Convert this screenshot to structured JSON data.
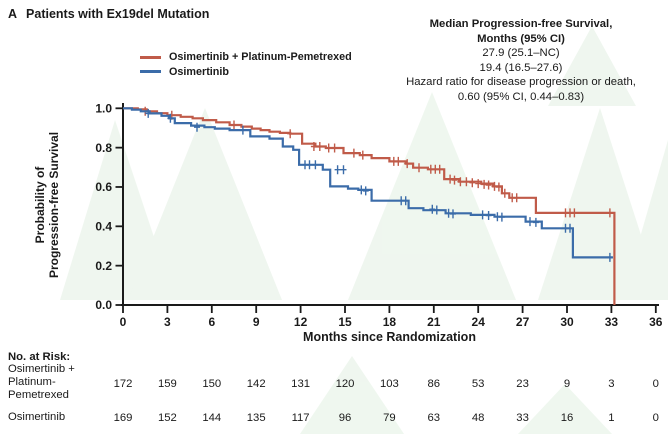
{
  "title": {
    "panel": "A",
    "text": "Patients with Ex19del Mutation"
  },
  "legend": [
    {
      "label": "Osimertinib + Platinum-Pemetrexed",
      "color": "#c05b49"
    },
    {
      "label": "Osimertinib",
      "color": "#3b6ca9"
    }
  ],
  "stats": {
    "heading_line1": "Median Progression-free Survival,",
    "heading_line2": "Months (95% CI)",
    "median_combo": "27.9 (25.1–NC)",
    "median_mono": "19.4 (16.5–27.6)",
    "hazard_line1": "Hazard ratio for disease progression or death,",
    "hazard_line2": "0.60 (95% CI, 0.44–0.83)"
  },
  "chart_data": {
    "type": "line",
    "subtype": "kaplan-meier-step",
    "title": "A Patients with Ex19del Mutation",
    "xlabel": "Months since Randomization",
    "ylabel_lines": [
      "Probability of",
      "Progression-free Survival"
    ],
    "xlim": [
      0,
      36
    ],
    "ylim": [
      0.0,
      1.0
    ],
    "xticks": [
      0,
      3,
      6,
      9,
      12,
      15,
      18,
      21,
      24,
      27,
      30,
      33,
      36
    ],
    "ytick_labels": [
      "0.0",
      "0.2",
      "0.4",
      "0.6",
      "0.8",
      "1.0"
    ],
    "yticks": [
      0.0,
      0.2,
      0.4,
      0.6,
      0.8,
      1.0
    ],
    "grid": false,
    "legend_position": "top-left-inside",
    "series": [
      {
        "name": "Osimertinib + Platinum-Pemetrexed",
        "color": "#c05b49",
        "median_months": "27.9 (25.1–NC)",
        "steps": [
          [
            0,
            1.0
          ],
          [
            1.0,
            0.995
          ],
          [
            1.6,
            0.985
          ],
          [
            2.3,
            0.975
          ],
          [
            3.0,
            0.965
          ],
          [
            3.9,
            0.957
          ],
          [
            4.7,
            0.949
          ],
          [
            5.4,
            0.94
          ],
          [
            6.3,
            0.929
          ],
          [
            7.2,
            0.915
          ],
          [
            8.0,
            0.907
          ],
          [
            8.7,
            0.897
          ],
          [
            9.3,
            0.889
          ],
          [
            9.9,
            0.881
          ],
          [
            10.6,
            0.875
          ],
          [
            11.3,
            0.871
          ],
          [
            12.1,
            0.82
          ],
          [
            13.0,
            0.806
          ],
          [
            13.7,
            0.798
          ],
          [
            14.9,
            0.772
          ],
          [
            16.0,
            0.762
          ],
          [
            16.8,
            0.747
          ],
          [
            18.0,
            0.73
          ],
          [
            19.1,
            0.719
          ],
          [
            19.6,
            0.698
          ],
          [
            20.6,
            0.69
          ],
          [
            21.7,
            0.64
          ],
          [
            22.7,
            0.627
          ],
          [
            24.2,
            0.617
          ],
          [
            25.0,
            0.603
          ],
          [
            25.6,
            0.568
          ],
          [
            26.1,
            0.545
          ],
          [
            27.9,
            0.468
          ],
          [
            33.2,
            0.468
          ]
        ],
        "drop_to_zero_at": 33.2,
        "censors": [
          [
            1.5,
            0.985
          ],
          [
            3.3,
            0.965
          ],
          [
            7.5,
            0.915
          ],
          [
            11.3,
            0.871
          ],
          [
            12.9,
            0.806
          ],
          [
            13.3,
            0.806
          ],
          [
            13.9,
            0.798
          ],
          [
            14.3,
            0.798
          ],
          [
            15.6,
            0.772
          ],
          [
            16.2,
            0.762
          ],
          [
            18.3,
            0.73
          ],
          [
            18.6,
            0.73
          ],
          [
            19.2,
            0.719
          ],
          [
            20.0,
            0.698
          ],
          [
            20.8,
            0.69
          ],
          [
            21.1,
            0.69
          ],
          [
            21.4,
            0.69
          ],
          [
            22.1,
            0.64
          ],
          [
            22.4,
            0.635
          ],
          [
            22.8,
            0.627
          ],
          [
            23.2,
            0.627
          ],
          [
            23.6,
            0.622
          ],
          [
            24.0,
            0.617
          ],
          [
            24.4,
            0.613
          ],
          [
            24.7,
            0.61
          ],
          [
            25.1,
            0.603
          ],
          [
            25.4,
            0.6
          ],
          [
            25.8,
            0.568
          ],
          [
            26.3,
            0.545
          ],
          [
            26.6,
            0.545
          ],
          [
            29.9,
            0.468
          ],
          [
            30.2,
            0.468
          ],
          [
            30.5,
            0.468
          ],
          [
            32.9,
            0.468
          ]
        ]
      },
      {
        "name": "Osimertinib",
        "color": "#3b6ca9",
        "median_months": "19.4 (16.5–27.6)",
        "steps": [
          [
            0,
            1.0
          ],
          [
            0.6,
            0.993
          ],
          [
            1.2,
            0.985
          ],
          [
            1.8,
            0.974
          ],
          [
            2.6,
            0.962
          ],
          [
            3.1,
            0.949
          ],
          [
            3.5,
            0.925
          ],
          [
            4.6,
            0.912
          ],
          [
            5.5,
            0.904
          ],
          [
            6.2,
            0.897
          ],
          [
            7.2,
            0.889
          ],
          [
            8.6,
            0.857
          ],
          [
            9.9,
            0.846
          ],
          [
            10.8,
            0.806
          ],
          [
            11.5,
            0.789
          ],
          [
            11.9,
            0.713
          ],
          [
            13.5,
            0.688
          ],
          [
            14.0,
            0.603
          ],
          [
            15.2,
            0.592
          ],
          [
            15.9,
            0.585
          ],
          [
            16.8,
            0.53
          ],
          [
            19.3,
            0.492
          ],
          [
            20.3,
            0.482
          ],
          [
            21.8,
            0.466
          ],
          [
            23.5,
            0.458
          ],
          [
            25.1,
            0.449
          ],
          [
            27.2,
            0.424
          ],
          [
            28.3,
            0.39
          ],
          [
            30.4,
            0.242
          ],
          [
            33.1,
            0.242
          ]
        ],
        "censors": [
          [
            1.7,
            0.974
          ],
          [
            3.2,
            0.949
          ],
          [
            5.0,
            0.904
          ],
          [
            8.1,
            0.889
          ],
          [
            12.3,
            0.713
          ],
          [
            12.6,
            0.713
          ],
          [
            13.0,
            0.713
          ],
          [
            14.5,
            0.688
          ],
          [
            14.9,
            0.688
          ],
          [
            16.1,
            0.585
          ],
          [
            16.4,
            0.58
          ],
          [
            18.8,
            0.53
          ],
          [
            19.1,
            0.53
          ],
          [
            20.9,
            0.487
          ],
          [
            21.2,
            0.483
          ],
          [
            22.0,
            0.466
          ],
          [
            22.3,
            0.463
          ],
          [
            24.3,
            0.458
          ],
          [
            24.7,
            0.455
          ],
          [
            25.3,
            0.449
          ],
          [
            25.6,
            0.447
          ],
          [
            27.5,
            0.424
          ],
          [
            27.9,
            0.42
          ],
          [
            29.9,
            0.39
          ],
          [
            30.2,
            0.39
          ],
          [
            32.9,
            0.242
          ]
        ]
      }
    ],
    "annotations": {
      "hazard_ratio": "0.60 (95% CI, 0.44–0.83)"
    }
  },
  "risk_table": {
    "heading": "No. at Risk:",
    "rows": [
      {
        "label_lines": [
          "Osimertinib +",
          "Platinum-",
          "Pemetrexed"
        ],
        "values": [
          172,
          159,
          150,
          142,
          131,
          120,
          103,
          86,
          53,
          23,
          9,
          3,
          0
        ]
      },
      {
        "label_lines": [
          "Osimertinib"
        ],
        "values": [
          169,
          152,
          144,
          135,
          117,
          96,
          79,
          63,
          48,
          33,
          16,
          1,
          0
        ]
      }
    ]
  },
  "colors": {
    "treatment": "#c05b49",
    "control": "#3b6ca9",
    "axis": "#1a1a1a",
    "watermark": "#eaf4ea"
  }
}
